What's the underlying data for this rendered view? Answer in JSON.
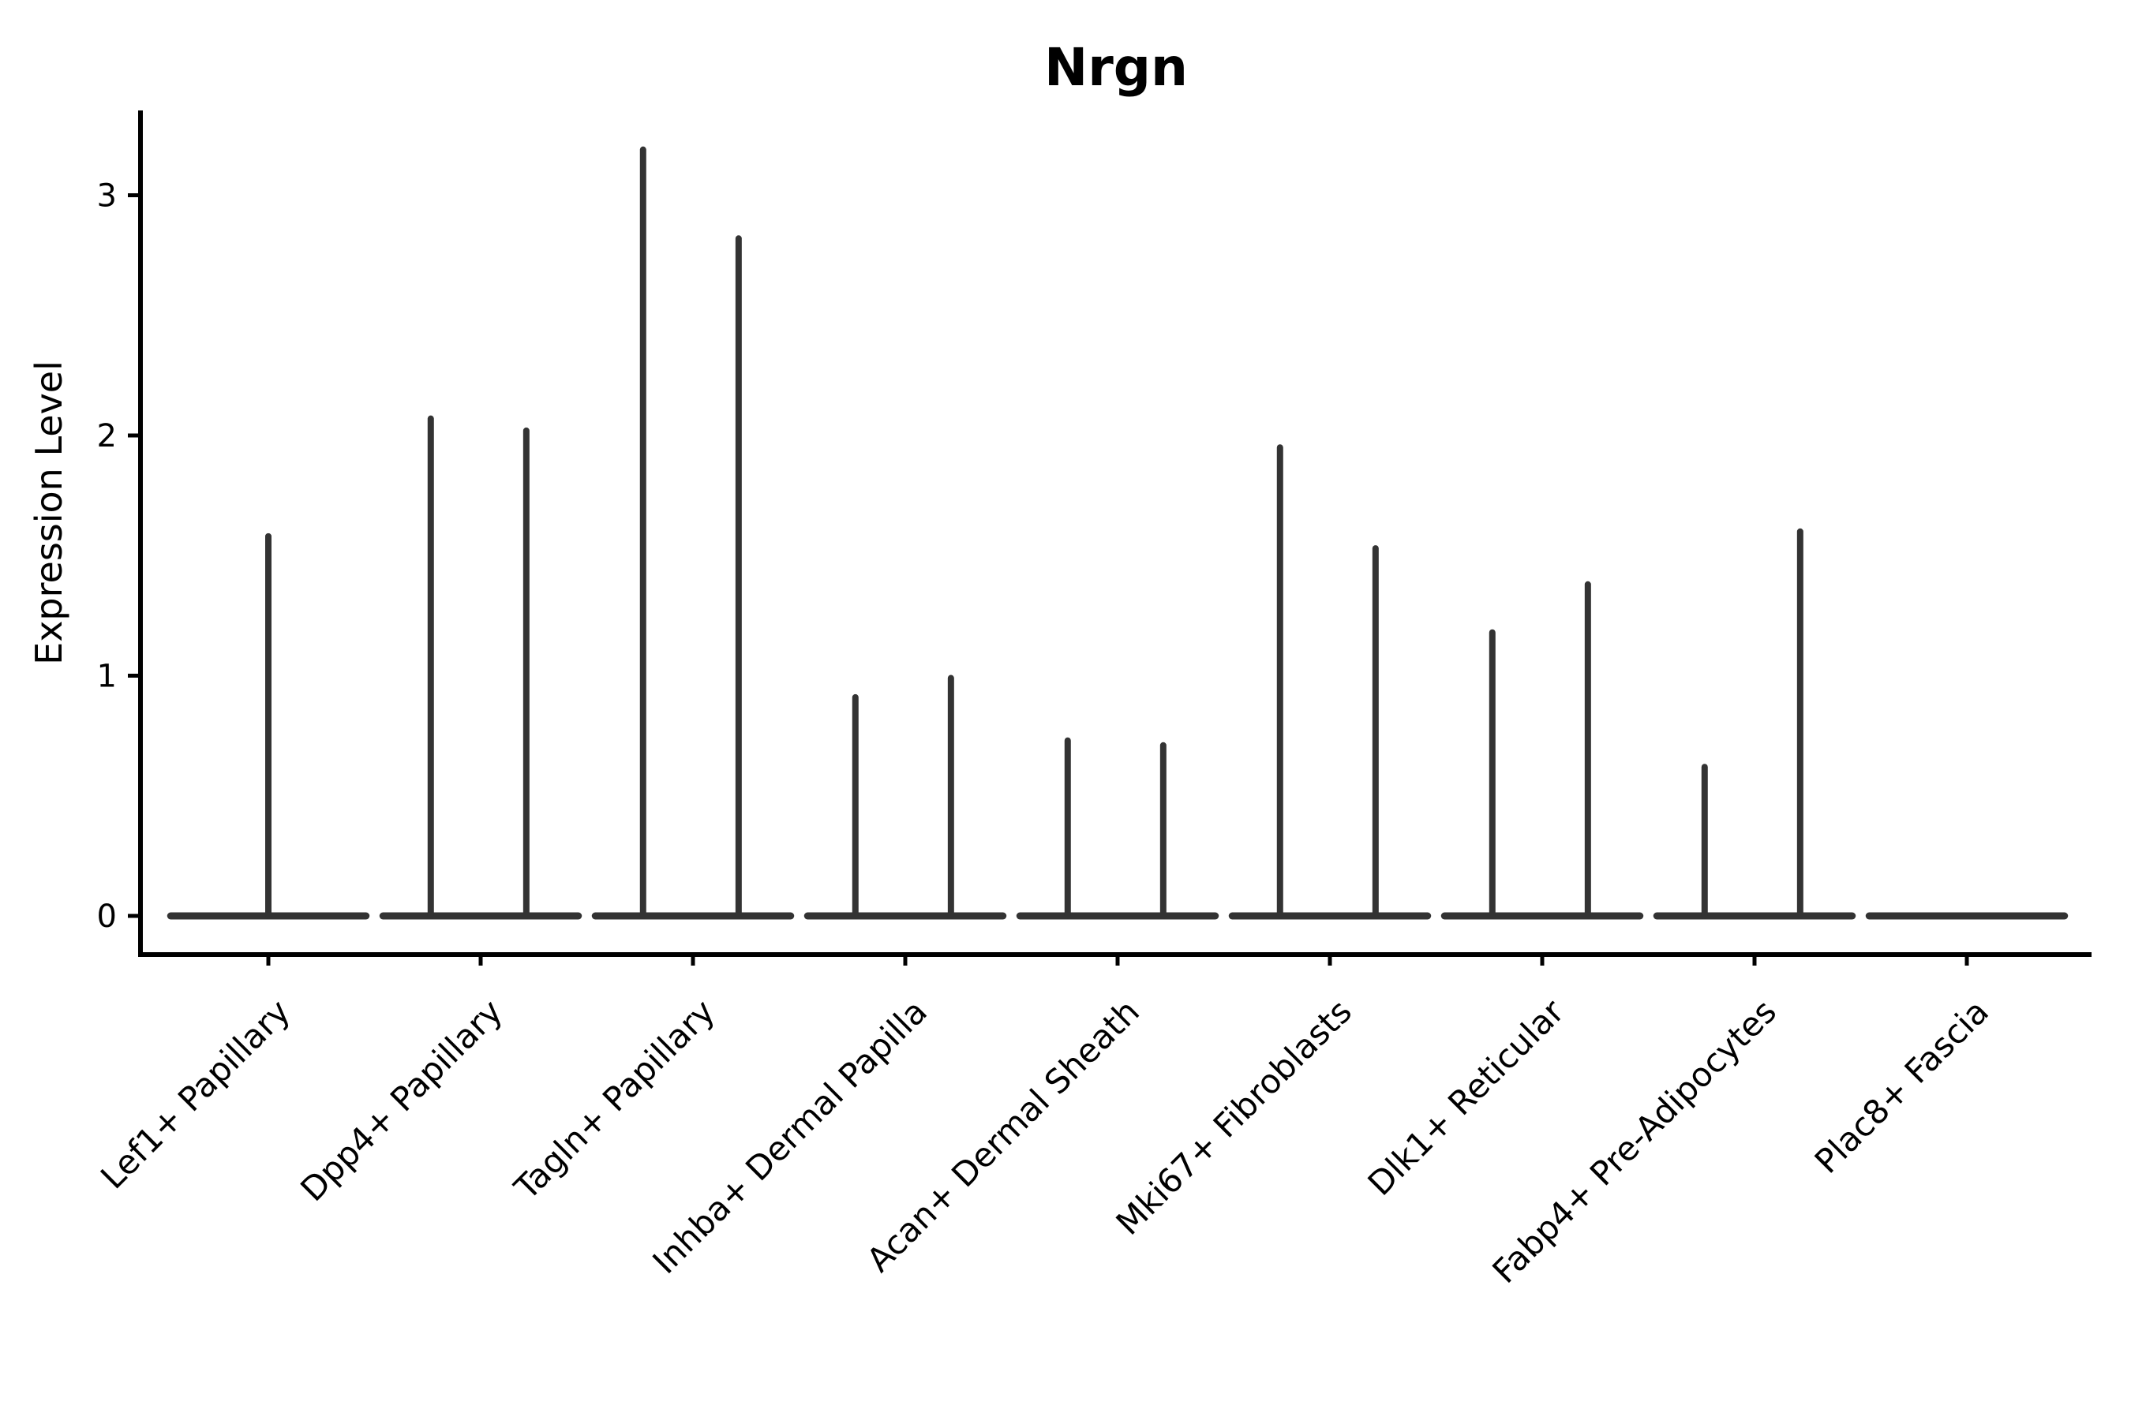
{
  "chart_data": {
    "type": "violin",
    "title": "Nrgn",
    "ylabel": "Expression Level",
    "xlabel": "",
    "grid": false,
    "legend": "none",
    "background": "#ffffff",
    "axis_color": "#000000",
    "violin_color": "#333333",
    "yticks": [
      0,
      1,
      2,
      3
    ],
    "ylim": [
      -0.16,
      3.35
    ],
    "categories": [
      "Lef1+ Papillary",
      "Dpp4+ Papillary",
      "Tagln+ Papillary",
      "Inhba+ Dermal Papilla",
      "Acan+ Dermal Sheath",
      "Mki67+ Fibroblasts",
      "Dlk1+ Reticular",
      "Fabp4+ Pre-Adipocytes",
      "Plac8+ Fascia"
    ],
    "violin_base_halfwidth": 0.46,
    "violins": [
      {
        "category": "Lef1+ Papillary",
        "baseline_value": 0,
        "peaks": [
          {
            "dx": 0.0,
            "value": 1.58
          }
        ]
      },
      {
        "category": "Dpp4+ Papillary",
        "baseline_value": 0,
        "peaks": [
          {
            "dx": -0.235,
            "value": 2.07
          },
          {
            "dx": 0.215,
            "value": 2.02
          }
        ]
      },
      {
        "category": "Tagln+ Papillary",
        "baseline_value": 0,
        "peaks": [
          {
            "dx": -0.235,
            "value": 3.19
          },
          {
            "dx": 0.215,
            "value": 2.82
          }
        ]
      },
      {
        "category": "Inhba+ Dermal Papilla",
        "baseline_value": 0,
        "peaks": [
          {
            "dx": -0.235,
            "value": 0.91
          },
          {
            "dx": 0.215,
            "value": 0.99
          }
        ]
      },
      {
        "category": "Acan+ Dermal Sheath",
        "baseline_value": 0,
        "peaks": [
          {
            "dx": -0.235,
            "value": 0.73
          },
          {
            "dx": 0.215,
            "value": 0.71
          }
        ]
      },
      {
        "category": "Mki67+ Fibroblasts",
        "baseline_value": 0,
        "peaks": [
          {
            "dx": -0.235,
            "value": 1.95
          },
          {
            "dx": 0.215,
            "value": 1.53
          }
        ]
      },
      {
        "category": "Dlk1+ Reticular",
        "baseline_value": 0,
        "peaks": [
          {
            "dx": -0.235,
            "value": 1.18
          },
          {
            "dx": 0.215,
            "value": 1.38
          }
        ]
      },
      {
        "category": "Fabp4+ Pre-Adipocytes",
        "baseline_value": 0,
        "peaks": [
          {
            "dx": -0.235,
            "value": 0.62
          },
          {
            "dx": 0.215,
            "value": 1.6
          }
        ]
      },
      {
        "category": "Plac8+ Fascia",
        "baseline_value": 0,
        "peaks": []
      }
    ]
  }
}
